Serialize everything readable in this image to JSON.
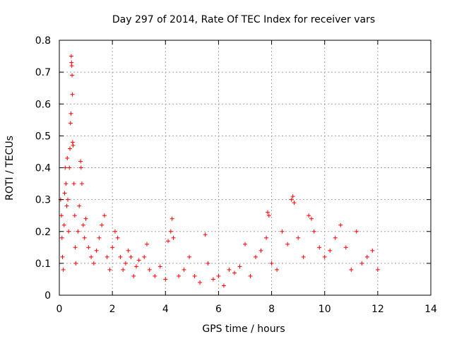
{
  "chart_data": {
    "type": "scatter",
    "title": "Day 297 of 2014, Rate Of TEC Index for receiver vars",
    "xlabel": "GPS time / hours",
    "ylabel": "ROTI / TECUs",
    "xlim": [
      0,
      14
    ],
    "ylim": [
      0,
      0.8
    ],
    "x_ticks": [
      "0",
      "2",
      "4",
      "6",
      "8",
      "10",
      "12",
      "14"
    ],
    "y_ticks": [
      "0",
      "0.1",
      "0.2",
      "0.3",
      "0.4",
      "0.5",
      "0.6",
      "0.7",
      "0.8"
    ],
    "grid": true,
    "marker": "+",
    "color": "#ff0000",
    "series": [
      {
        "name": "ROTI",
        "points": [
          [
            0.05,
            0.3
          ],
          [
            0.08,
            0.25
          ],
          [
            0.1,
            0.18
          ],
          [
            0.12,
            0.12
          ],
          [
            0.15,
            0.08
          ],
          [
            0.18,
            0.22
          ],
          [
            0.2,
            0.32
          ],
          [
            0.22,
            0.4
          ],
          [
            0.25,
            0.35
          ],
          [
            0.28,
            0.28
          ],
          [
            0.3,
            0.43
          ],
          [
            0.32,
            0.3
          ],
          [
            0.35,
            0.2
          ],
          [
            0.38,
            0.4
          ],
          [
            0.4,
            0.46
          ],
          [
            0.42,
            0.54
          ],
          [
            0.44,
            0.57
          ],
          [
            0.45,
            0.75
          ],
          [
            0.46,
            0.73
          ],
          [
            0.47,
            0.72
          ],
          [
            0.48,
            0.69
          ],
          [
            0.49,
            0.63
          ],
          [
            0.5,
            0.48
          ],
          [
            0.52,
            0.47
          ],
          [
            0.55,
            0.35
          ],
          [
            0.58,
            0.25
          ],
          [
            0.6,
            0.15
          ],
          [
            0.62,
            0.1
          ],
          [
            0.7,
            0.2
          ],
          [
            0.75,
            0.28
          ],
          [
            0.8,
            0.42
          ],
          [
            0.82,
            0.4
          ],
          [
            0.85,
            0.35
          ],
          [
            0.9,
            0.22
          ],
          [
            0.95,
            0.18
          ],
          [
            1.0,
            0.24
          ],
          [
            1.1,
            0.15
          ],
          [
            1.2,
            0.12
          ],
          [
            1.3,
            0.1
          ],
          [
            1.4,
            0.14
          ],
          [
            1.5,
            0.18
          ],
          [
            1.6,
            0.22
          ],
          [
            1.7,
            0.25
          ],
          [
            1.8,
            0.12
          ],
          [
            1.9,
            0.08
          ],
          [
            2.0,
            0.15
          ],
          [
            2.1,
            0.2
          ],
          [
            2.2,
            0.18
          ],
          [
            2.3,
            0.12
          ],
          [
            2.4,
            0.08
          ],
          [
            2.5,
            0.1
          ],
          [
            2.6,
            0.14
          ],
          [
            2.7,
            0.12
          ],
          [
            2.8,
            0.06
          ],
          [
            2.9,
            0.09
          ],
          [
            3.0,
            0.11
          ],
          [
            3.2,
            0.12
          ],
          [
            3.3,
            0.16
          ],
          [
            3.4,
            0.08
          ],
          [
            3.6,
            0.06
          ],
          [
            3.8,
            0.09
          ],
          [
            4.0,
            0.05
          ],
          [
            4.1,
            0.17
          ],
          [
            4.2,
            0.2
          ],
          [
            4.25,
            0.24
          ],
          [
            4.3,
            0.18
          ],
          [
            4.5,
            0.06
          ],
          [
            4.7,
            0.08
          ],
          [
            4.9,
            0.12
          ],
          [
            5.1,
            0.06
          ],
          [
            5.3,
            0.04
          ],
          [
            5.5,
            0.19
          ],
          [
            5.6,
            0.1
          ],
          [
            5.8,
            0.05
          ],
          [
            6.0,
            0.06
          ],
          [
            6.2,
            0.03
          ],
          [
            6.4,
            0.08
          ],
          [
            6.6,
            0.07
          ],
          [
            6.8,
            0.09
          ],
          [
            7.0,
            0.16
          ],
          [
            7.2,
            0.06
          ],
          [
            7.4,
            0.12
          ],
          [
            7.6,
            0.14
          ],
          [
            7.8,
            0.18
          ],
          [
            7.85,
            0.26
          ],
          [
            7.9,
            0.25
          ],
          [
            8.0,
            0.1
          ],
          [
            8.2,
            0.08
          ],
          [
            8.4,
            0.2
          ],
          [
            8.6,
            0.16
          ],
          [
            8.75,
            0.3
          ],
          [
            8.8,
            0.31
          ],
          [
            8.85,
            0.29
          ],
          [
            9.0,
            0.18
          ],
          [
            9.2,
            0.12
          ],
          [
            9.4,
            0.25
          ],
          [
            9.5,
            0.24
          ],
          [
            9.6,
            0.2
          ],
          [
            9.8,
            0.15
          ],
          [
            10.0,
            0.12
          ],
          [
            10.2,
            0.14
          ],
          [
            10.4,
            0.18
          ],
          [
            10.6,
            0.22
          ],
          [
            10.8,
            0.15
          ],
          [
            11.0,
            0.08
          ],
          [
            11.2,
            0.2
          ],
          [
            11.4,
            0.1
          ],
          [
            11.6,
            0.12
          ],
          [
            11.8,
            0.14
          ],
          [
            12.0,
            0.08
          ]
        ]
      }
    ]
  }
}
